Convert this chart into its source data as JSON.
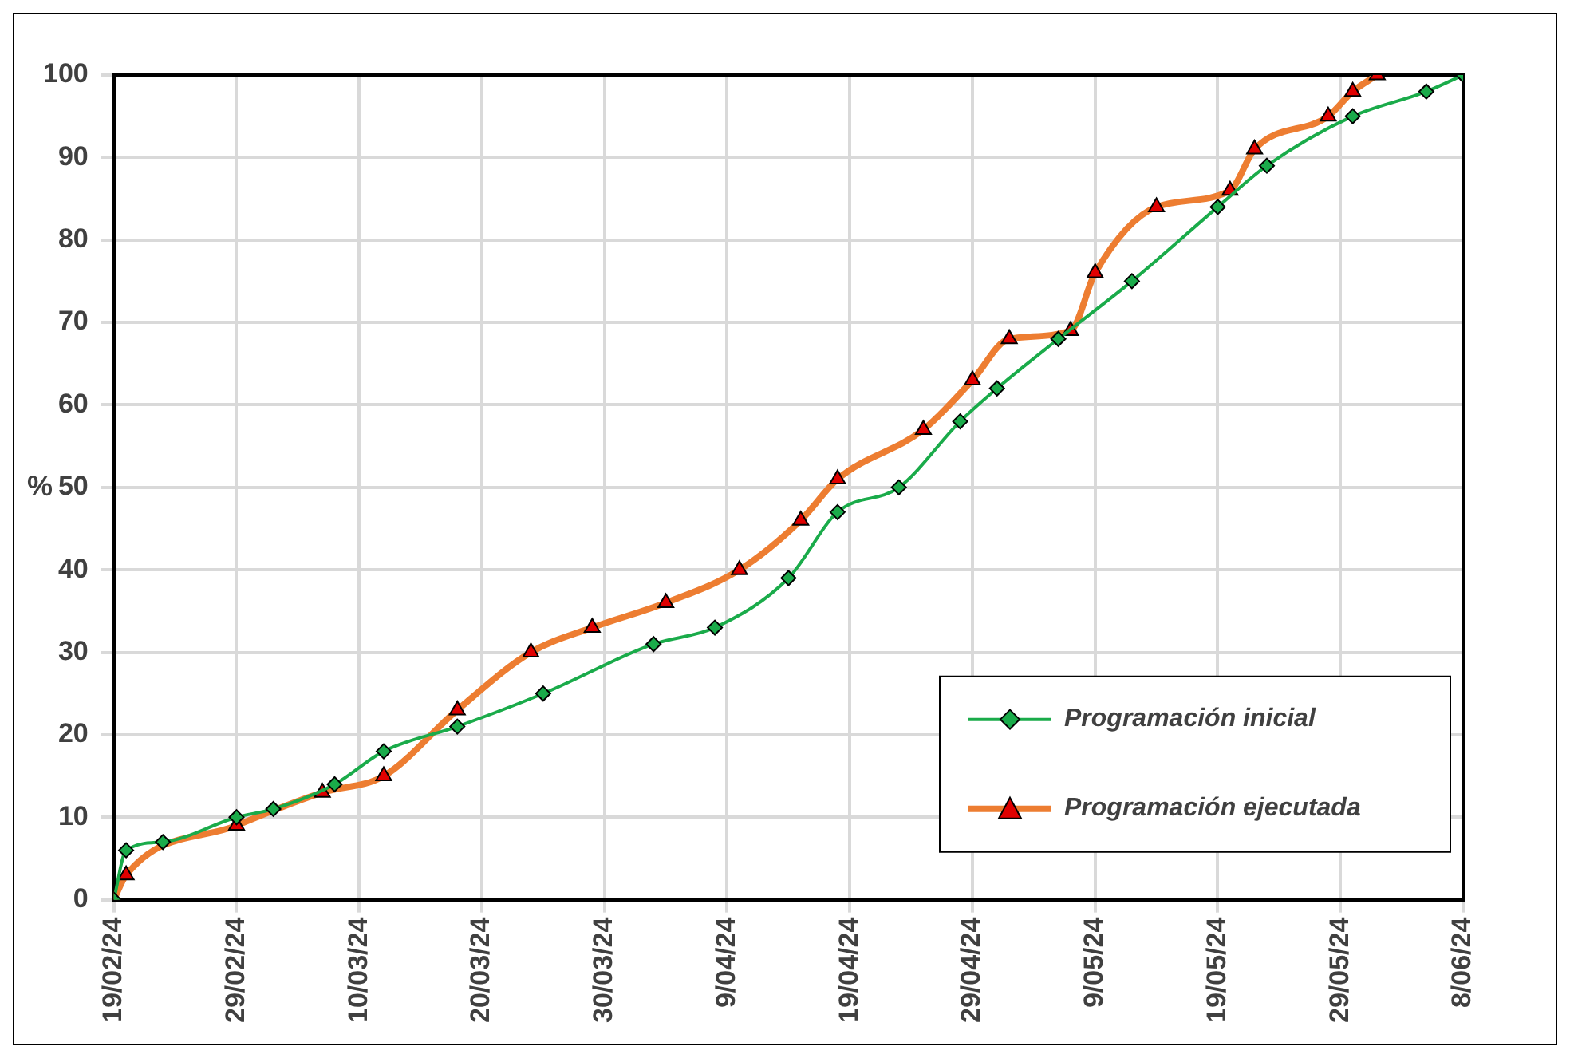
{
  "chart_data": {
    "type": "line",
    "ylabel": "%",
    "ylim": [
      0,
      100
    ],
    "yticks": [
      0,
      10,
      20,
      30,
      40,
      50,
      60,
      70,
      80,
      90,
      100
    ],
    "xlim": [
      "--02-19",
      "--06-08"
    ],
    "xticks": [
      {
        "value": "--02-19",
        "label": "19/02/24"
      },
      {
        "value": "--02-29",
        "label": "29/02/24"
      },
      {
        "value": "--03-10",
        "label": "10/03/24"
      },
      {
        "value": "--03-20",
        "label": "20/03/24"
      },
      {
        "value": "--03-30",
        "label": "30/03/24"
      },
      {
        "value": "--04-09",
        "label": "9/04/24"
      },
      {
        "value": "--04-19",
        "label": "19/04/24"
      },
      {
        "value": "--04-29",
        "label": "29/04/24"
      },
      {
        "value": "--05-09",
        "label": "9/05/24"
      },
      {
        "value": "--05-19",
        "label": "19/05/24"
      },
      {
        "value": "--05-29",
        "label": "29/05/24"
      },
      {
        "value": "--06-08",
        "label": "8/06/24"
      }
    ],
    "grid": true,
    "legend": "bottom right",
    "series": [
      {
        "name": "Programación inicial",
        "color": "#1aab4a",
        "marker": "diamond",
        "x": [
          "--02-19",
          "--02-20",
          "--02-23",
          "--02-29",
          "--03-03",
          "--03-08",
          "--03-12",
          "--03-18",
          "--03-25",
          "--04-03",
          "--04-08",
          "--04-14",
          "--04-18",
          "--04-23",
          "--04-28",
          "--05-01",
          "--05-06",
          "--05-12",
          "--05-19",
          "--05-23",
          "--05-30",
          "--06-05",
          "--06-08"
        ],
        "values": [
          0,
          6,
          7,
          10,
          11,
          14,
          18,
          21,
          25,
          31,
          33,
          39,
          47,
          50,
          58,
          62,
          68,
          75,
          84,
          89,
          95,
          98,
          100
        ]
      },
      {
        "name": "Programación ejecutada",
        "color": "#ed7d31",
        "marker": "triangle",
        "x": [
          "--02-19",
          "--02-20",
          "--02-29",
          "--03-07",
          "--03-12",
          "--03-18",
          "--03-24",
          "--03-29",
          "--04-04",
          "--04-10",
          "--04-15",
          "--04-18",
          "--04-25",
          "--04-29",
          "--05-02",
          "--05-07",
          "--05-09",
          "--05-14",
          "--05-20",
          "--05-22",
          "--05-28",
          "--05-30",
          "--06-01"
        ],
        "values": [
          0,
          3,
          9,
          13,
          15,
          23,
          30,
          33,
          36,
          40,
          46,
          51,
          57,
          63,
          68,
          69,
          76,
          84,
          86,
          91,
          95,
          98,
          100
        ]
      }
    ]
  }
}
